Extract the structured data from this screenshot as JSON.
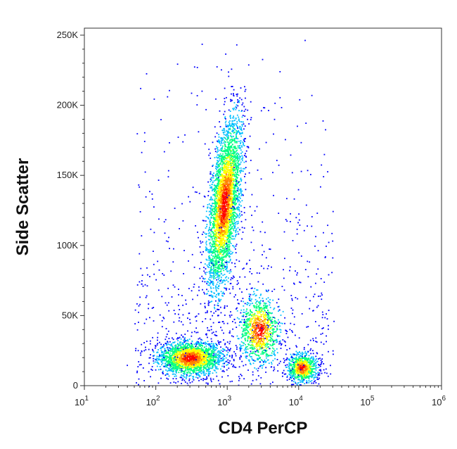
{
  "chart_data": {
    "type": "scatter",
    "title": "",
    "xlabel": "CD4 PerCP",
    "ylabel": "Side Scatter",
    "x_scale": "log",
    "xlim": [
      10,
      1000000
    ],
    "ylim": [
      0,
      255000
    ],
    "x_ticks": [
      {
        "value": 10,
        "base": "10",
        "exp": "1"
      },
      {
        "value": 100,
        "base": "10",
        "exp": "2"
      },
      {
        "value": 1000,
        "base": "10",
        "exp": "3"
      },
      {
        "value": 10000,
        "base": "10",
        "exp": "4"
      },
      {
        "value": 100000,
        "base": "10",
        "exp": "5"
      },
      {
        "value": 1000000,
        "base": "10",
        "exp": "6"
      }
    ],
    "y_ticks": [
      {
        "value": 0,
        "label": "0"
      },
      {
        "value": 50000,
        "label": "50K"
      },
      {
        "value": 100000,
        "label": "100K"
      },
      {
        "value": 150000,
        "label": "150K"
      },
      {
        "value": 200000,
        "label": "200K"
      },
      {
        "value": 250000,
        "label": "250K"
      }
    ],
    "grid": false,
    "legend": false,
    "density_colormap": [
      "#0000ff",
      "#00bfff",
      "#00ff80",
      "#ffff00",
      "#ff8000",
      "#ff0000"
    ],
    "populations": [
      {
        "x_center": 300,
        "y_center": 20000,
        "x_spread_log": 0.22,
        "y_spread": 6000,
        "events": 2200
      },
      {
        "x_center": 900,
        "y_center": 130000,
        "x_spread_log": 0.1,
        "y_spread": 30000,
        "events": 3400
      },
      {
        "x_center": 2800,
        "y_center": 40000,
        "x_spread_log": 0.14,
        "y_spread": 12000,
        "events": 1000
      },
      {
        "x_center": 11000,
        "y_center": 13000,
        "x_spread_log": 0.1,
        "y_spread": 5000,
        "events": 800
      }
    ]
  }
}
